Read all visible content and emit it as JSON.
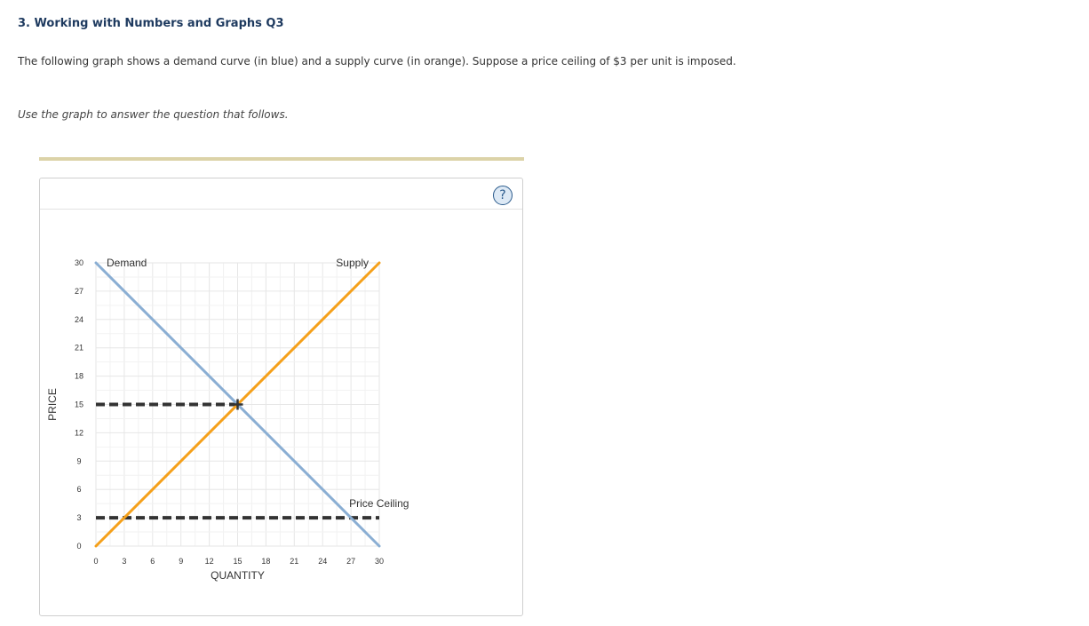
{
  "question": {
    "title": "3. Working with Numbers and Graphs Q3",
    "text": "The following graph shows a demand curve (in blue) and a supply curve (in orange). Suppose a price ceiling of $3 per unit is imposed.",
    "instruction": "Use the graph to answer the question that follows."
  },
  "help": {
    "label": "?",
    "icon": "help-circle-icon"
  },
  "colors": {
    "demand": "#8aaed3",
    "supply": "#f5a01a",
    "dashed": "#333333",
    "grid": "#eeeeee",
    "divider": "#dcd3a8"
  },
  "chart_data": {
    "type": "line",
    "xlabel": "QUANTITY",
    "ylabel": "PRICE",
    "xlim": [
      0,
      30
    ],
    "ylim": [
      0,
      30
    ],
    "xticks": [
      "0",
      "3",
      "6",
      "9",
      "12",
      "15",
      "18",
      "21",
      "24",
      "27",
      "30"
    ],
    "yticks": [
      "0",
      "3",
      "6",
      "9",
      "12",
      "15",
      "18",
      "21",
      "24",
      "27",
      "30"
    ],
    "grid": true,
    "series": [
      {
        "name": "Demand",
        "x": [
          0,
          30
        ],
        "y": [
          30,
          0
        ]
      },
      {
        "name": "Supply",
        "x": [
          0,
          30
        ],
        "y": [
          0,
          30
        ]
      }
    ],
    "equilibrium": {
      "x": 15,
      "y": 15
    },
    "dashed_lines": [
      {
        "x": [
          0,
          15
        ],
        "y": [
          15,
          15
        ]
      },
      {
        "x": [
          0,
          30
        ],
        "y": [
          3,
          3
        ]
      }
    ],
    "annotations": [
      {
        "text": "Price Ceiling",
        "x": 27,
        "y": 3
      }
    ]
  }
}
